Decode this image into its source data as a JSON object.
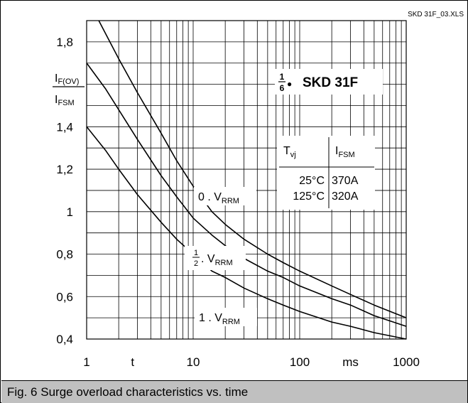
{
  "file_label": "SKD 31F_03.XLS",
  "caption": "Fig. 6 Surge overload characteristics vs. time",
  "device": {
    "fraction_num": "1",
    "fraction_den": "6",
    "bullet": "●",
    "name": "SKD 31F"
  },
  "ylabel": {
    "num_main": "I",
    "num_sub": "F(OV)",
    "den_main": "I",
    "den_sub": "FSM"
  },
  "table": {
    "h1_main": "T",
    "h1_sub": "vj",
    "h2_main": "I",
    "h2_sub": "FSM",
    "rows": [
      {
        "temp": "25°C",
        "current": "370A"
      },
      {
        "temp": "125°C",
        "current": "320A"
      }
    ]
  },
  "curve_labels": [
    {
      "prefix": "0 . V",
      "sub": "RRM"
    },
    {
      "num": "1",
      "den": "2",
      "prefix": ". V",
      "sub": "RRM"
    },
    {
      "prefix": "1 . V",
      "sub": "RRM"
    }
  ],
  "chart_data": {
    "type": "line",
    "xscale": "log",
    "xlim": [
      1,
      1000
    ],
    "ylim": [
      0.4,
      1.9
    ],
    "grid": true,
    "xticks": [
      "1",
      "t",
      "10",
      "100",
      "ms",
      "1000"
    ],
    "yticks": [
      "1,8",
      "1,4",
      "1,2",
      "1",
      "0,8",
      "0,6",
      "0,4"
    ],
    "series": [
      {
        "name": "0 . VRRM",
        "x": [
          1.3,
          2,
          3,
          5,
          7,
          10,
          15,
          20,
          30,
          50,
          70,
          100,
          200,
          300,
          500,
          1000
        ],
        "y": [
          1.9,
          1.72,
          1.56,
          1.37,
          1.24,
          1.12,
          1.0,
          0.94,
          0.87,
          0.8,
          0.76,
          0.72,
          0.65,
          0.61,
          0.56,
          0.5
        ]
      },
      {
        "name": "1/2 . VRRM",
        "x": [
          1,
          1.5,
          2,
          3,
          5,
          7,
          10,
          15,
          20,
          30,
          50,
          70,
          100,
          200,
          300,
          500,
          1000
        ],
        "y": [
          1.7,
          1.58,
          1.48,
          1.34,
          1.17,
          1.07,
          0.97,
          0.89,
          0.84,
          0.78,
          0.72,
          0.69,
          0.65,
          0.59,
          0.56,
          0.51,
          0.46
        ]
      },
      {
        "name": "1 . VRRM",
        "x": [
          1,
          1.5,
          2,
          3,
          5,
          7,
          10,
          15,
          20,
          30,
          50,
          70,
          100,
          200,
          300,
          500,
          1000
        ],
        "y": [
          1.4,
          1.29,
          1.2,
          1.08,
          0.95,
          0.87,
          0.8,
          0.72,
          0.69,
          0.64,
          0.59,
          0.56,
          0.53,
          0.48,
          0.46,
          0.43,
          0.4
        ]
      }
    ]
  }
}
